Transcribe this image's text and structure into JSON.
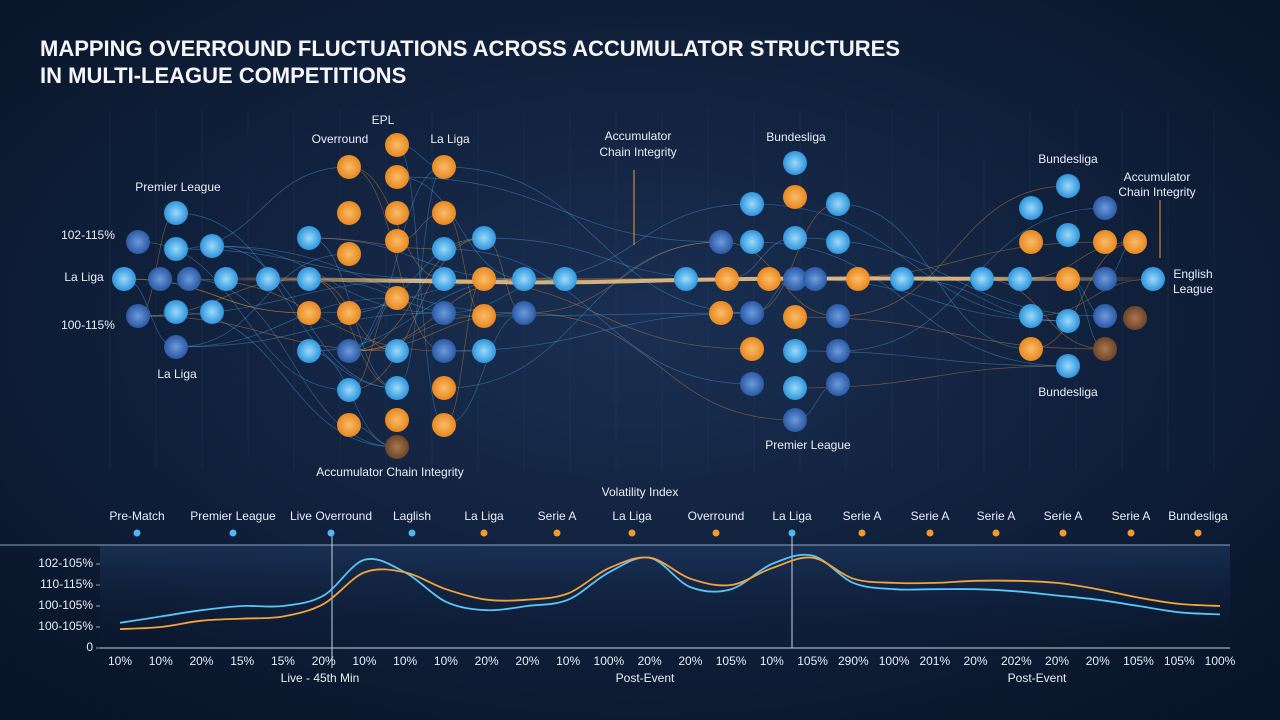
{
  "title": [
    "MAPPING OVERROUND FLUCTUATIONS ACROSS ACCUMULATOR STRUCTURES",
    "IN MULTI-LEAGUE COMPETITIONS"
  ],
  "network": {
    "labels": [
      "EPL",
      "Overround",
      "La Liga",
      "Premier League",
      "102-115%",
      "La Liga",
      "100-115%",
      "La Liga",
      "Accumulator Chain Integrity",
      "Accumulator",
      "Chain Integrity",
      "Bundesliga",
      "Premier League",
      "Bundesliga",
      "Accumulator",
      "Chain Integrity",
      "English",
      "League",
      "Bundesliga"
    ]
  },
  "chart_data": {
    "type": "line",
    "title": "Volatility Index",
    "markers": [
      "Pre-Match",
      "Premier League",
      "Live Overround",
      "Laglish",
      "La Liga",
      "Serie A",
      "La Liga",
      "Overround",
      "La Liga",
      "Serie A",
      "Serie A",
      "Serie A",
      "Serie A",
      "Serie A",
      "Bundesliga"
    ],
    "marker_colors": [
      "#4fb8f2",
      "#4fb8f2",
      "#4fb8f2",
      "#4fb8f2",
      "#f39a2e",
      "#f39a2e",
      "#f39a2e",
      "#f39a2e",
      "#4fb8f2",
      "#f39a2e",
      "#f39a2e",
      "#f39a2e",
      "#f39a2e",
      "#f39a2e",
      "#f39a2e"
    ],
    "categories": [
      "10%",
      "10%",
      "20%",
      "15%",
      "15%",
      "20%",
      "10%",
      "10%",
      "10%",
      "20%",
      "20%",
      "10%",
      "100%",
      "20%",
      "20%",
      "105%",
      "10%",
      "105%",
      "290%",
      "100%",
      "201%",
      "20%",
      "202%",
      "20%",
      "20%",
      "105%",
      "105%",
      "100%"
    ],
    "ylim": [
      0,
      5
    ],
    "yticks": [
      {
        "value": 4,
        "label": "102-105%"
      },
      {
        "value": 3,
        "label": "110-115%"
      },
      {
        "value": 2,
        "label": "100-105%"
      },
      {
        "value": 1,
        "label": "100-105%"
      },
      0
    ],
    "series": [
      {
        "color": "#5cc4f5",
        "values": [
          1.2,
          1.5,
          1.8,
          2.0,
          2.0,
          2.5,
          4.2,
          3.6,
          2.2,
          1.8,
          2.0,
          2.3,
          3.6,
          4.3,
          2.9,
          2.8,
          4.0,
          4.4,
          3.1,
          2.8,
          2.8,
          2.8,
          2.7,
          2.5,
          2.3,
          2.0,
          1.7,
          1.6
        ]
      },
      {
        "color": "#f2a33a",
        "values": [
          0.9,
          1.0,
          1.3,
          1.4,
          1.5,
          2.1,
          3.6,
          3.6,
          2.8,
          2.3,
          2.3,
          2.6,
          3.8,
          4.3,
          3.3,
          3.0,
          3.8,
          4.3,
          3.3,
          3.1,
          3.1,
          3.2,
          3.2,
          3.1,
          2.8,
          2.4,
          2.1,
          2.0
        ]
      }
    ],
    "annotations": [
      "Live - 45th Min",
      "Post-Event",
      "Post-Event"
    ]
  }
}
